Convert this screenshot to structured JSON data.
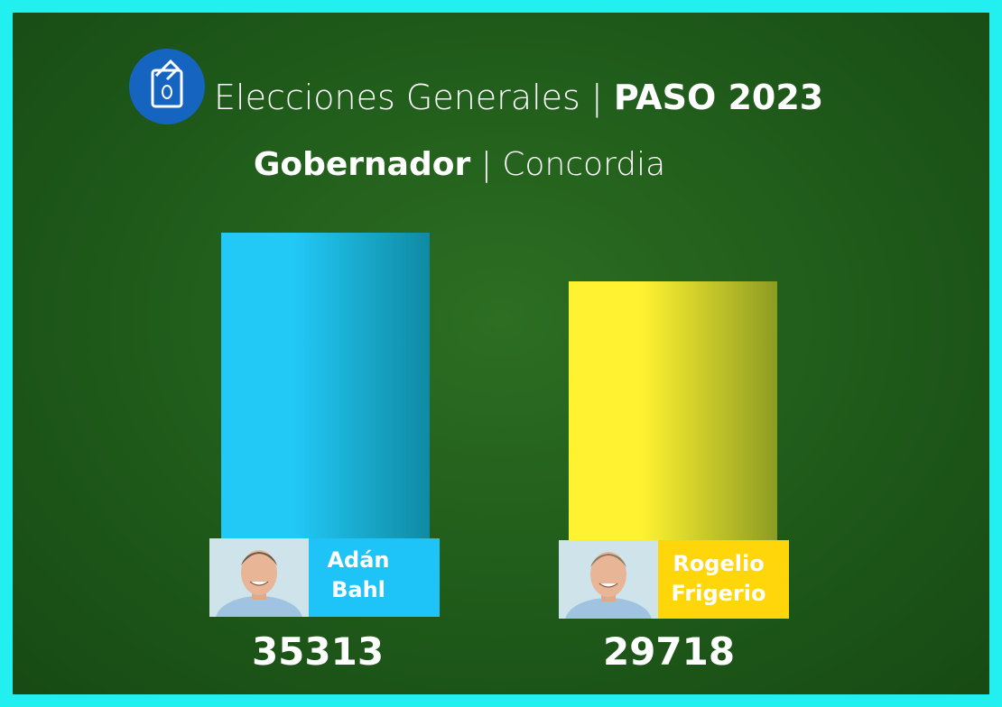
{
  "chart_data": {
    "type": "bar",
    "title": "Elecciones Generales",
    "title_highlight": "PASO 2023",
    "separator": "|",
    "subtitle": "Gobernador",
    "subtitle_detail": "Concordia",
    "categories": [
      "Adán Bahl",
      "Rogelio Frigerio"
    ],
    "values": [
      35313,
      29718
    ],
    "colors": [
      [
        "#22c8f6",
        "#0f8aa3"
      ],
      [
        "#fff230",
        "#8c9c22"
      ]
    ],
    "label_colors": [
      "#1ec3f7",
      "#ffd60a"
    ]
  }
}
